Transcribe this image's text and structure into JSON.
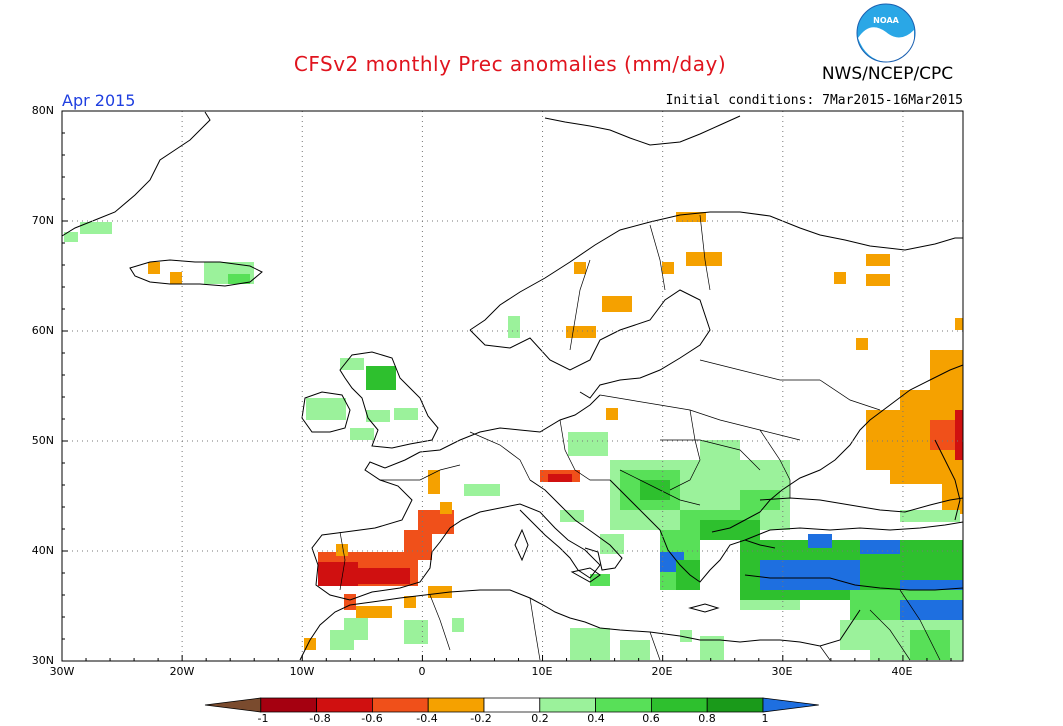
{
  "header": {
    "title": "CFSv2 monthly Prec anomalies (mm/day)",
    "agency": "NWS/NCEP/CPC",
    "month": "Apr 2015",
    "initial_conditions": "Initial conditions: 7Mar2015-16Mar2015",
    "logo_text": "NOAA"
  },
  "map": {
    "lat_labels": [
      "80N",
      "70N",
      "60N",
      "50N",
      "40N",
      "30N"
    ],
    "lon_labels": [
      "30W",
      "20W",
      "10W",
      "0",
      "10E",
      "20E",
      "30E",
      "40E"
    ]
  },
  "colorbar": {
    "labels": [
      "-1",
      "-0.8",
      "-0.6",
      "-0.4",
      "-0.2",
      "0.2",
      "0.4",
      "0.6",
      "0.8",
      "1"
    ],
    "colors": [
      "#7a4b2e",
      "#a50010",
      "#d01010",
      "#f0501a",
      "#f5a100",
      "#ffffff",
      "#9bf29b",
      "#58e058",
      "#2ec02e",
      "#1a9a1a",
      "#1e6fe0"
    ]
  },
  "anomaly_regions": [
    {
      "name": "iberia-negative",
      "category": "-0.6",
      "color": "#f0501a"
    },
    {
      "name": "turkey-positive",
      "category": "1",
      "color": "#1e6fe0"
    },
    {
      "name": "russia-negative",
      "category": "-0.4",
      "color": "#f5a100"
    },
    {
      "name": "balkans-positive",
      "category": "0.6",
      "color": "#2ec02e"
    }
  ]
}
